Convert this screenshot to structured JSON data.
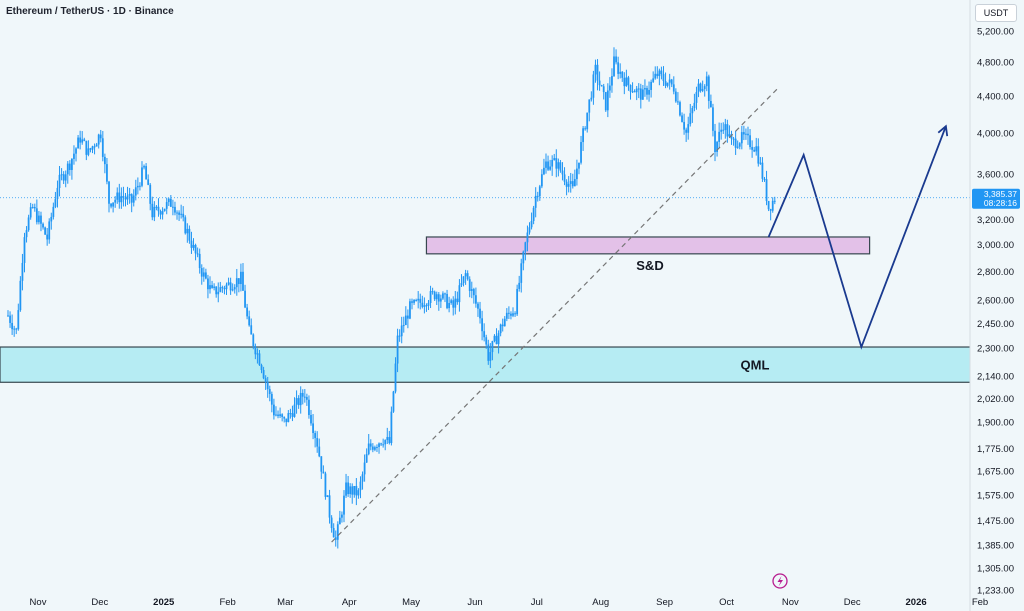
{
  "header": {
    "title": "Ethereum / TetherUS · 1D · Binance",
    "currency": "USDT"
  },
  "current_price": {
    "price": "3,385.37",
    "countdown": "08:28:16"
  },
  "colors": {
    "background": "#f0f7fa",
    "candles": "#2196f3",
    "qml_zone": "#b2ebf2",
    "sd_zone": "#e1bee7",
    "projection": "#1a3a8f"
  },
  "flash_icon": "lightning-icon",
  "chart_data": {
    "type": "candlestick",
    "title": "",
    "x_ticks": [
      "Nov",
      "Dec",
      "2025",
      "Feb",
      "Mar",
      "Apr",
      "May",
      "Jun",
      "Jul",
      "Aug",
      "Sep",
      "Oct",
      "Nov",
      "Dec",
      "2026",
      "Feb"
    ],
    "y_ticks": [
      "5,200.00",
      "4,800.00",
      "4,400.00",
      "4,000.00",
      "3,600.00",
      "3,200.00",
      "3,000.00",
      "2,800.00",
      "2,600.00",
      "2,450.00",
      "2,300.00",
      "2,140.00",
      "2,020.00",
      "1,900.00",
      "1,775.00",
      "1,675.00",
      "1,575.00",
      "1,475.00",
      "1,385.00",
      "1,305.00",
      "1,233.00"
    ],
    "y_scale": "log",
    "ylim": [
      1233,
      5350
    ],
    "date_range": [
      "2024-11-01",
      "2026-02-01"
    ],
    "price_path": [
      [
        "2024-11-01",
        2500
      ],
      [
        "2024-11-05",
        2400
      ],
      [
        "2024-11-09",
        3100
      ],
      [
        "2024-11-13",
        3300
      ],
      [
        "2024-11-20",
        3050
      ],
      [
        "2024-11-25",
        3500
      ],
      [
        "2024-12-01",
        3700
      ],
      [
        "2024-12-06",
        3950
      ],
      [
        "2024-12-10",
        3800
      ],
      [
        "2024-12-16",
        4000
      ],
      [
        "2024-12-20",
        3350
      ],
      [
        "2024-12-26",
        3400
      ],
      [
        "2024-12-31",
        3350
      ],
      [
        "2025-01-06",
        3650
      ],
      [
        "2025-01-10",
        3250
      ],
      [
        "2025-01-20",
        3350
      ],
      [
        "2025-01-27",
        3100
      ],
      [
        "2025-02-03",
        2800
      ],
      [
        "2025-02-08",
        2650
      ],
      [
        "2025-02-15",
        2700
      ],
      [
        "2025-02-22",
        2750
      ],
      [
        "2025-02-26",
        2400
      ],
      [
        "2025-03-04",
        2200
      ],
      [
        "2025-03-10",
        1950
      ],
      [
        "2025-03-15",
        1900
      ],
      [
        "2025-03-25",
        2050
      ],
      [
        "2025-03-31",
        1800
      ],
      [
        "2025-04-06",
        1500
      ],
      [
        "2025-04-09",
        1400
      ],
      [
        "2025-04-14",
        1600
      ],
      [
        "2025-04-20",
        1580
      ],
      [
        "2025-04-25",
        1780
      ],
      [
        "2025-05-02",
        1820
      ],
      [
        "2025-05-05",
        1800
      ],
      [
        "2025-05-09",
        2350
      ],
      [
        "2025-05-15",
        2550
      ],
      [
        "2025-05-22",
        2600
      ],
      [
        "2025-05-28",
        2650
      ],
      [
        "2025-06-05",
        2550
      ],
      [
        "2025-06-11",
        2780
      ],
      [
        "2025-06-18",
        2500
      ],
      [
        "2025-06-22",
        2250
      ],
      [
        "2025-06-30",
        2480
      ],
      [
        "2025-07-05",
        2550
      ],
      [
        "2025-07-10",
        3000
      ],
      [
        "2025-07-15",
        3400
      ],
      [
        "2025-07-20",
        3700
      ],
      [
        "2025-07-25",
        3700
      ],
      [
        "2025-08-02",
        3450
      ],
      [
        "2025-08-08",
        4100
      ],
      [
        "2025-08-13",
        4700
      ],
      [
        "2025-08-18",
        4300
      ],
      [
        "2025-08-22",
        4800
      ],
      [
        "2025-08-28",
        4550
      ],
      [
        "2025-09-05",
        4400
      ],
      [
        "2025-09-12",
        4650
      ],
      [
        "2025-09-20",
        4500
      ],
      [
        "2025-09-26",
        4000
      ],
      [
        "2025-10-02",
        4500
      ],
      [
        "2025-10-06",
        4600
      ],
      [
        "2025-10-10",
        3850
      ],
      [
        "2025-10-14",
        4100
      ],
      [
        "2025-10-18",
        3900
      ],
      [
        "2025-10-24",
        3950
      ],
      [
        "2025-10-30",
        3850
      ],
      [
        "2025-11-03",
        3500
      ],
      [
        "2025-11-05",
        3300
      ],
      [
        "2025-11-08",
        3385
      ]
    ],
    "current_price": 3385.37,
    "annotations": [
      {
        "type": "zone",
        "label": "S&D",
        "x_start": "2025-05-23",
        "x_end": "2025-12-24",
        "y_low": 2930,
        "y_high": 3060,
        "color": "#e1bee7"
      },
      {
        "type": "zone",
        "label": "QML",
        "x_start": "2024-11-01",
        "x_end": "2026-02-01",
        "y_low": 2105,
        "y_high": 2305,
        "color": "#b2ebf2"
      },
      {
        "type": "trendline",
        "style": "dashed",
        "points": [
          [
            "2025-04-07",
            1395
          ],
          [
            "2025-11-10",
            4500
          ]
        ]
      },
      {
        "type": "projection",
        "points": [
          [
            "2025-11-05",
            3060
          ],
          [
            "2025-11-22",
            3780
          ],
          [
            "2025-12-20",
            2305
          ],
          [
            "2026-01-30",
            4070
          ]
        ]
      }
    ]
  }
}
